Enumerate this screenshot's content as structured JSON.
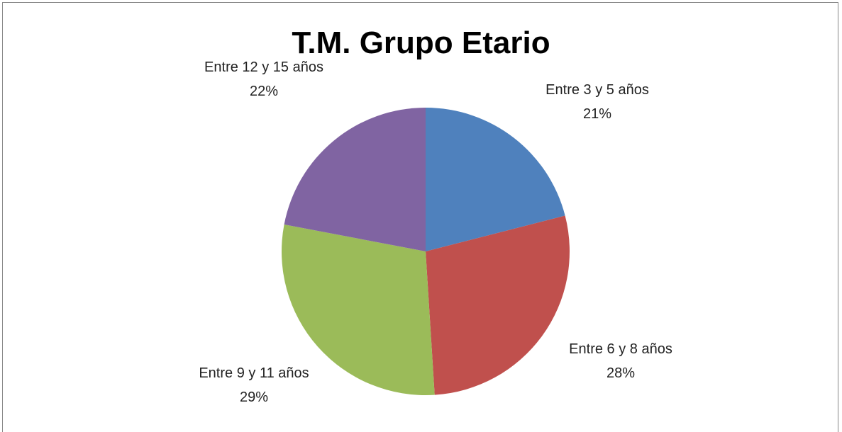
{
  "chart_data": {
    "type": "pie",
    "title": "T.M. Grupo Etario",
    "categories": [
      "Entre 3 y 5 años",
      "Entre 6 y 8 años",
      "Entre 9 y 11 años",
      "Entre 12 y 15 años"
    ],
    "values": [
      21,
      28,
      29,
      22
    ],
    "value_labels": [
      "21%",
      "28%",
      "29%",
      "22%"
    ],
    "colors": [
      "#4f81bd",
      "#c0504d",
      "#9bbb59",
      "#8064a2"
    ]
  }
}
